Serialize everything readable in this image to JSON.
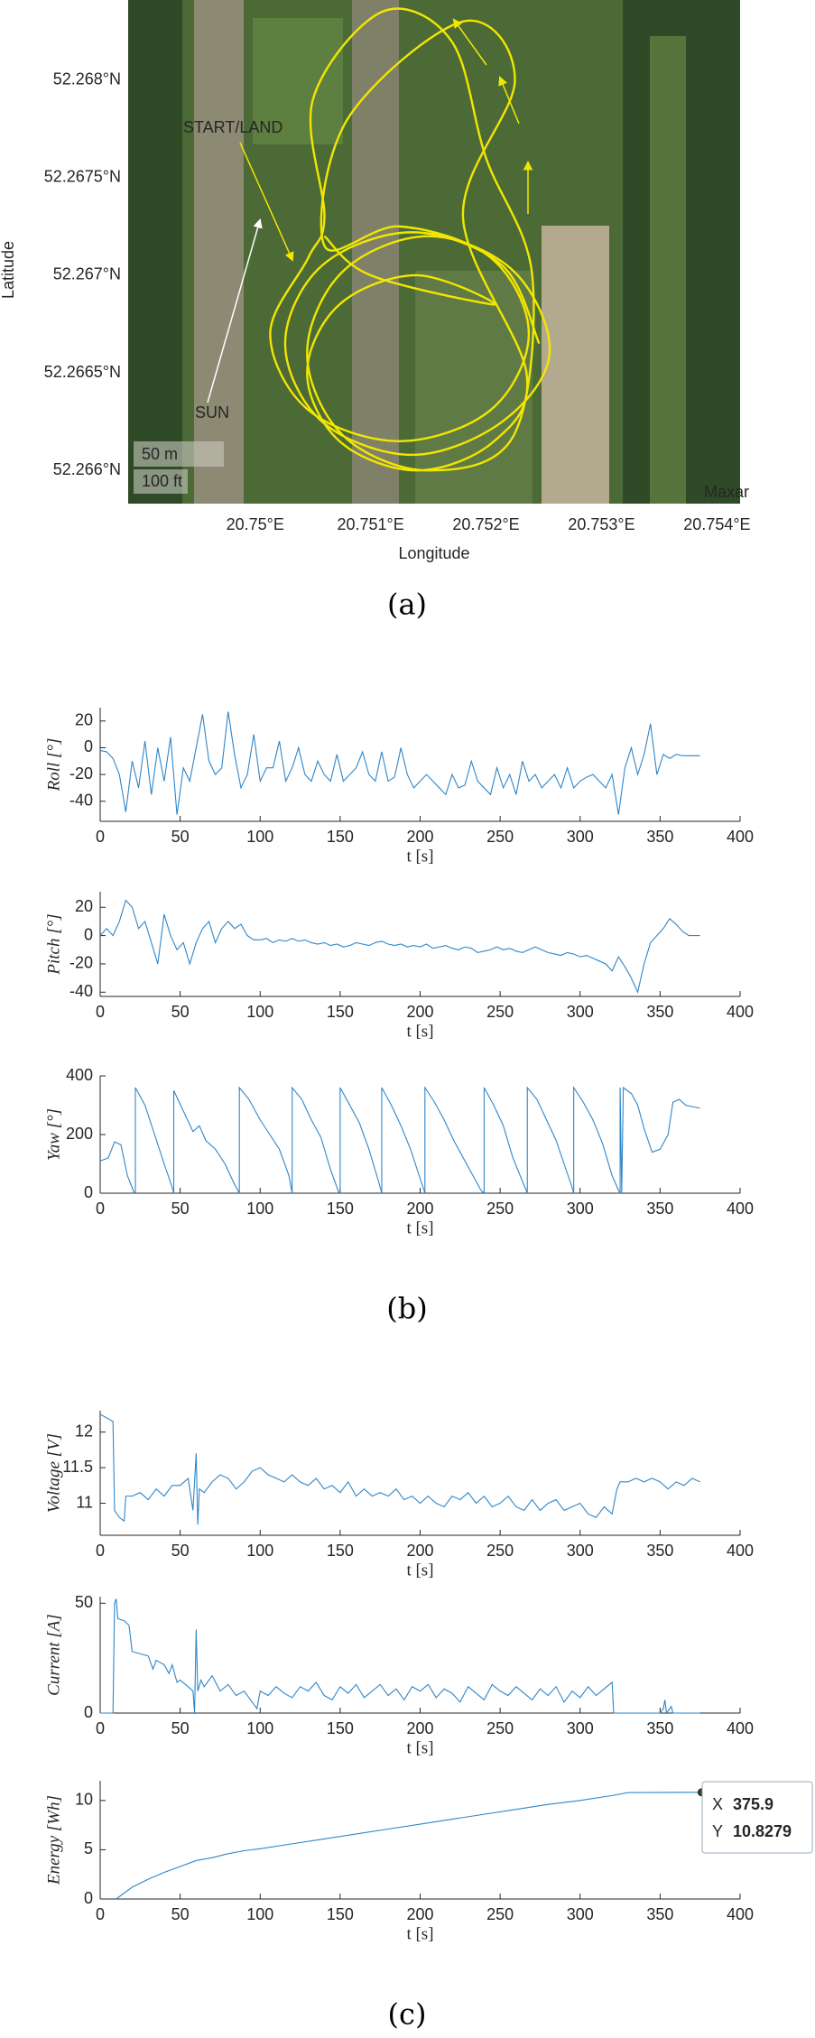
{
  "captions": [
    "(a)",
    "(b)",
    "(c)"
  ],
  "chart_data": [
    {
      "type": "map",
      "xlabel": "Longitude",
      "ylabel": "Latitude",
      "color": "#f2e600",
      "xlim": [
        20.7489,
        20.7542
      ],
      "ylim": [
        52.26583,
        52.26841
      ],
      "xticks": [
        {
          "value": 20.75,
          "label": "20.75°E"
        },
        {
          "value": 20.751,
          "label": "20.751°E"
        },
        {
          "value": 20.752,
          "label": "20.752°E"
        },
        {
          "value": 20.753,
          "label": "20.753°E"
        },
        {
          "value": 20.754,
          "label": "20.754°E"
        }
      ],
      "yticks": [
        {
          "value": 52.266,
          "label": "52.266°N"
        },
        {
          "value": 52.2665,
          "label": "52.2665°N"
        },
        {
          "value": 52.267,
          "label": "52.267°N"
        },
        {
          "value": 52.2675,
          "label": "52.2675°N"
        },
        {
          "value": 52.268,
          "label": "52.268°N"
        }
      ],
      "annotations": [
        "START/LAND",
        "SUN",
        "50 m",
        "100 ft",
        "Maxar"
      ],
      "x": [
        20.75246,
        20.75214,
        20.75136,
        20.75058,
        20.75026,
        20.75058,
        20.75136,
        20.75214,
        20.75255,
        20.75224,
        20.7515,
        20.75076,
        20.75045,
        20.75076,
        20.7515,
        20.75224,
        20.7524,
        20.752,
        20.7517,
        20.7511,
        20.7505,
        20.7506,
        20.75046,
        20.75013,
        20.75046,
        20.75125,
        20.75204,
        20.75237,
        20.75204,
        20.75125,
        20.7506,
        20.7508,
        20.7518,
        20.75225,
        20.7518,
        20.75235,
        20.75207,
        20.7514,
        20.75073,
        20.75045,
        20.75073,
        20.7514,
        20.75207,
        20.751,
        20.7506
      ],
      "values": [
        52.26665,
        52.26705,
        52.26722,
        52.26705,
        52.26665,
        52.26625,
        52.26608,
        52.26625,
        52.2666,
        52.26702,
        52.2672,
        52.26702,
        52.2666,
        52.26618,
        52.266,
        52.26618,
        52.267,
        52.2676,
        52.2682,
        52.26835,
        52.2679,
        52.2673,
        52.26709,
        52.2667,
        52.26631,
        52.26615,
        52.26631,
        52.2667,
        52.26709,
        52.26725,
        52.26715,
        52.2678,
        52.2683,
        52.268,
        52.2673,
        52.2665,
        52.26615,
        52.266,
        52.26615,
        52.2665,
        52.26685,
        52.267,
        52.26685,
        52.267,
        52.2672
      ]
    },
    {
      "type": "line",
      "ylabel": "Roll [°]",
      "xlabel": "t [s]",
      "color": "#2f86c8",
      "xlim": [
        0,
        400
      ],
      "ylim": [
        -55,
        30
      ],
      "xticks": [
        0,
        50,
        100,
        150,
        200,
        250,
        300,
        350,
        400
      ],
      "yticks": [
        -40,
        -20,
        0,
        20
      ],
      "x": [
        0,
        4,
        8,
        12,
        16,
        20,
        24,
        28,
        32,
        36,
        40,
        44,
        48,
        52,
        56,
        60,
        64,
        68,
        72,
        76,
        80,
        84,
        88,
        92,
        96,
        100,
        104,
        108,
        112,
        116,
        120,
        124,
        128,
        132,
        136,
        140,
        144,
        148,
        152,
        156,
        160,
        164,
        168,
        172,
        176,
        180,
        184,
        188,
        192,
        196,
        200,
        204,
        208,
        212,
        216,
        220,
        224,
        228,
        232,
        236,
        240,
        244,
        248,
        252,
        256,
        260,
        264,
        268,
        272,
        276,
        280,
        284,
        288,
        292,
        296,
        300,
        304,
        308,
        312,
        316,
        320,
        324,
        328,
        332,
        336,
        340,
        344,
        348,
        352,
        356,
        360,
        364,
        368,
        372,
        375
      ],
      "values": [
        -2,
        -3,
        -8,
        -20,
        -48,
        -10,
        -30,
        5,
        -35,
        0,
        -25,
        8,
        -50,
        -15,
        -25,
        0,
        25,
        -10,
        -20,
        -15,
        27,
        -5,
        -30,
        -20,
        10,
        -25,
        -15,
        -15,
        5,
        -25,
        -15,
        0,
        -20,
        -25,
        -10,
        -20,
        -25,
        -5,
        -25,
        -20,
        -15,
        -3,
        -20,
        -25,
        -3,
        -25,
        -22,
        0,
        -20,
        -30,
        -25,
        -20,
        -25,
        -30,
        -35,
        -20,
        -30,
        -28,
        -10,
        -25,
        -30,
        -35,
        -15,
        -30,
        -20,
        -35,
        -10,
        -25,
        -20,
        -30,
        -25,
        -20,
        -30,
        -15,
        -30,
        -25,
        -22,
        -20,
        -25,
        -30,
        -20,
        -50,
        -15,
        0,
        -20,
        -5,
        18,
        -20,
        -5,
        -8,
        -5,
        -6,
        -6,
        -6,
        -6
      ]
    },
    {
      "type": "line",
      "ylabel": "Pitch [°]",
      "xlabel": "t [s]",
      "color": "#2f86c8",
      "xlim": [
        0,
        400
      ],
      "ylim": [
        -43,
        31
      ],
      "xticks": [
        0,
        50,
        100,
        150,
        200,
        250,
        300,
        350,
        400
      ],
      "yticks": [
        -40,
        -20,
        0,
        20
      ],
      "x": [
        0,
        4,
        8,
        12,
        16,
        20,
        24,
        28,
        32,
        36,
        40,
        44,
        48,
        52,
        56,
        60,
        64,
        68,
        72,
        76,
        80,
        84,
        88,
        92,
        96,
        100,
        104,
        108,
        112,
        116,
        120,
        124,
        128,
        132,
        136,
        140,
        144,
        148,
        152,
        156,
        160,
        164,
        168,
        172,
        176,
        180,
        184,
        188,
        192,
        196,
        200,
        204,
        208,
        212,
        216,
        220,
        224,
        228,
        232,
        236,
        240,
        244,
        248,
        252,
        256,
        260,
        264,
        268,
        272,
        276,
        280,
        284,
        288,
        292,
        296,
        300,
        304,
        308,
        312,
        316,
        320,
        324,
        328,
        332,
        336,
        340,
        344,
        348,
        352,
        356,
        360,
        364,
        368,
        372,
        375
      ],
      "values": [
        0,
        5,
        0,
        10,
        25,
        20,
        5,
        10,
        -5,
        -20,
        15,
        0,
        -10,
        -5,
        -20,
        -5,
        5,
        10,
        -5,
        5,
        10,
        5,
        8,
        0,
        -3,
        -3,
        -2,
        -5,
        -3,
        -4,
        -2,
        -4,
        -3,
        -5,
        -6,
        -5,
        -7,
        -6,
        -8,
        -7,
        -5,
        -6,
        -7,
        -5,
        -4,
        -6,
        -7,
        -6,
        -8,
        -7,
        -8,
        -6,
        -9,
        -8,
        -7,
        -9,
        -10,
        -8,
        -9,
        -12,
        -11,
        -10,
        -8,
        -10,
        -9,
        -11,
        -12,
        -10,
        -8,
        -10,
        -12,
        -13,
        -14,
        -12,
        -13,
        -15,
        -14,
        -16,
        -18,
        -20,
        -25,
        -15,
        -22,
        -30,
        -40,
        -20,
        -5,
        0,
        5,
        12,
        8,
        3,
        0,
        0,
        0
      ]
    },
    {
      "type": "line",
      "ylabel": "Yaw [°]",
      "xlabel": "t [s]",
      "color": "#2f86c8",
      "xlim": [
        0,
        400
      ],
      "ylim": [
        0,
        400
      ],
      "xticks": [
        0,
        50,
        100,
        150,
        200,
        250,
        300,
        350,
        400
      ],
      "yticks": [
        0,
        200,
        400
      ],
      "x": [
        0,
        5,
        9,
        13,
        17,
        21,
        22,
        22,
        28,
        34,
        40,
        45,
        46,
        46,
        52,
        58,
        62,
        66,
        72,
        78,
        84,
        87,
        87,
        93,
        100,
        106,
        112,
        118,
        120,
        120,
        126,
        132,
        138,
        144,
        149,
        150,
        150,
        156,
        162,
        168,
        174,
        176,
        176,
        182,
        188,
        194,
        200,
        203,
        203,
        209,
        215,
        221,
        227,
        233,
        238,
        240,
        240,
        246,
        252,
        258,
        264,
        267,
        267,
        273,
        279,
        285,
        290,
        295,
        296,
        296,
        302,
        308,
        314,
        320,
        324,
        325,
        325,
        326,
        327,
        332,
        336,
        340,
        345,
        350,
        355,
        358,
        362,
        366,
        370,
        375
      ],
      "values": [
        110,
        120,
        175,
        165,
        60,
        5,
        0,
        360,
        300,
        200,
        100,
        20,
        0,
        350,
        280,
        210,
        230,
        180,
        150,
        100,
        30,
        0,
        360,
        320,
        250,
        200,
        150,
        60,
        0,
        360,
        320,
        250,
        190,
        80,
        5,
        0,
        360,
        300,
        240,
        150,
        40,
        0,
        360,
        300,
        230,
        150,
        50,
        0,
        360,
        310,
        250,
        180,
        120,
        60,
        10,
        0,
        360,
        300,
        230,
        120,
        40,
        0,
        360,
        320,
        250,
        180,
        100,
        20,
        0,
        360,
        310,
        250,
        170,
        60,
        10,
        0,
        360,
        0,
        360,
        340,
        300,
        220,
        140,
        150,
        200,
        310,
        320,
        300,
        295,
        290
      ]
    },
    {
      "type": "line",
      "ylabel": "Voltage [V]",
      "xlabel": "t [s]",
      "color": "#2f86c8",
      "xlim": [
        0,
        400
      ],
      "ylim": [
        10.55,
        12.3
      ],
      "xticks": [
        0,
        50,
        100,
        150,
        200,
        250,
        300,
        350,
        400
      ],
      "yticks": [
        11,
        11.5,
        12
      ],
      "x": [
        0,
        4,
        8,
        9,
        12,
        15,
        16,
        20,
        25,
        30,
        35,
        40,
        45,
        50,
        55,
        58,
        60,
        61,
        62,
        65,
        70,
        75,
        80,
        85,
        90,
        95,
        100,
        105,
        110,
        115,
        120,
        125,
        130,
        135,
        140,
        145,
        150,
        155,
        160,
        165,
        170,
        175,
        180,
        185,
        190,
        195,
        200,
        205,
        210,
        215,
        220,
        225,
        230,
        235,
        240,
        245,
        250,
        255,
        260,
        265,
        270,
        275,
        280,
        285,
        290,
        295,
        300,
        305,
        310,
        315,
        320,
        323,
        325,
        330,
        335,
        340,
        345,
        350,
        355,
        360,
        365,
        370,
        375
      ],
      "values": [
        12.25,
        12.2,
        12.15,
        10.9,
        10.8,
        10.75,
        11.1,
        11.1,
        11.15,
        11.05,
        11.2,
        11.1,
        11.25,
        11.25,
        11.35,
        10.9,
        11.7,
        10.7,
        11.2,
        11.15,
        11.3,
        11.4,
        11.35,
        11.2,
        11.3,
        11.45,
        11.5,
        11.4,
        11.35,
        11.3,
        11.4,
        11.3,
        11.25,
        11.35,
        11.2,
        11.25,
        11.15,
        11.3,
        11.1,
        11.2,
        11.1,
        11.15,
        11.1,
        11.2,
        11.05,
        11.1,
        11,
        11.1,
        11,
        10.95,
        11.1,
        11.05,
        11.15,
        11,
        11.1,
        10.95,
        11,
        11.1,
        10.95,
        10.9,
        11.05,
        10.9,
        11,
        11.05,
        10.9,
        10.95,
        11,
        10.85,
        10.8,
        10.95,
        10.85,
        11.2,
        11.3,
        11.3,
        11.35,
        11.3,
        11.35,
        11.3,
        11.2,
        11.3,
        11.25,
        11.35,
        11.3
      ]
    },
    {
      "type": "line",
      "ylabel": "Current [A]",
      "xlabel": "t [s]",
      "color": "#2f86c8",
      "xlim": [
        0,
        400
      ],
      "ylim": [
        0,
        53
      ],
      "xticks": [
        0,
        50,
        100,
        150,
        200,
        250,
        300,
        350,
        400
      ],
      "yticks": [
        0,
        50
      ],
      "x": [
        0,
        8,
        9,
        10,
        11,
        15,
        18,
        20,
        25,
        30,
        33,
        35,
        40,
        43,
        45,
        48,
        50,
        55,
        58,
        59,
        60,
        61,
        63,
        65,
        70,
        75,
        80,
        85,
        90,
        95,
        98,
        100,
        105,
        110,
        115,
        120,
        125,
        130,
        135,
        140,
        145,
        150,
        155,
        160,
        165,
        170,
        175,
        180,
        185,
        190,
        195,
        200,
        205,
        210,
        215,
        220,
        225,
        230,
        235,
        240,
        245,
        250,
        255,
        260,
        265,
        270,
        275,
        280,
        285,
        290,
        295,
        300,
        305,
        310,
        315,
        320,
        321,
        350,
        352,
        353,
        354,
        357,
        358,
        375
      ],
      "values": [
        0,
        0,
        50,
        52,
        43,
        42,
        40,
        28,
        27,
        26,
        20,
        24,
        22,
        18,
        22,
        14,
        15,
        12,
        10,
        0,
        38,
        10,
        15,
        12,
        17,
        10,
        13,
        8,
        10,
        5,
        2,
        10,
        8,
        12,
        9,
        7,
        12,
        10,
        14,
        8,
        6,
        12,
        9,
        13,
        7,
        10,
        13,
        8,
        11,
        6,
        12,
        10,
        13,
        7,
        11,
        9,
        5,
        12,
        9,
        6,
        13,
        10,
        8,
        12,
        9,
        6,
        11,
        8,
        12,
        5,
        10,
        7,
        12,
        8,
        11,
        14,
        0,
        0,
        2,
        6,
        0,
        3,
        0,
        0
      ]
    },
    {
      "type": "line",
      "ylabel": "Energy [Wh]",
      "xlabel": "t [s]",
      "color": "#2f86c8",
      "xlim": [
        0,
        400
      ],
      "ylim": [
        0,
        12
      ],
      "xticks": [
        0,
        50,
        100,
        150,
        200,
        250,
        300,
        350,
        400
      ],
      "yticks": [
        0,
        5,
        10
      ],
      "x": [
        10,
        15,
        20,
        30,
        40,
        50,
        60,
        70,
        80,
        90,
        100,
        120,
        140,
        160,
        180,
        200,
        220,
        240,
        260,
        280,
        300,
        320,
        330,
        375.9
      ],
      "values": [
        0,
        0.6,
        1.2,
        2,
        2.7,
        3.3,
        3.9,
        4.2,
        4.6,
        4.9,
        5.1,
        5.6,
        6.1,
        6.6,
        7.1,
        7.6,
        8.1,
        8.6,
        9.1,
        9.6,
        10,
        10.5,
        10.8,
        10.8279
      ],
      "datatip": {
        "x_label": "X",
        "x": 375.9,
        "y_label": "Y",
        "y": 10.8279
      }
    }
  ]
}
